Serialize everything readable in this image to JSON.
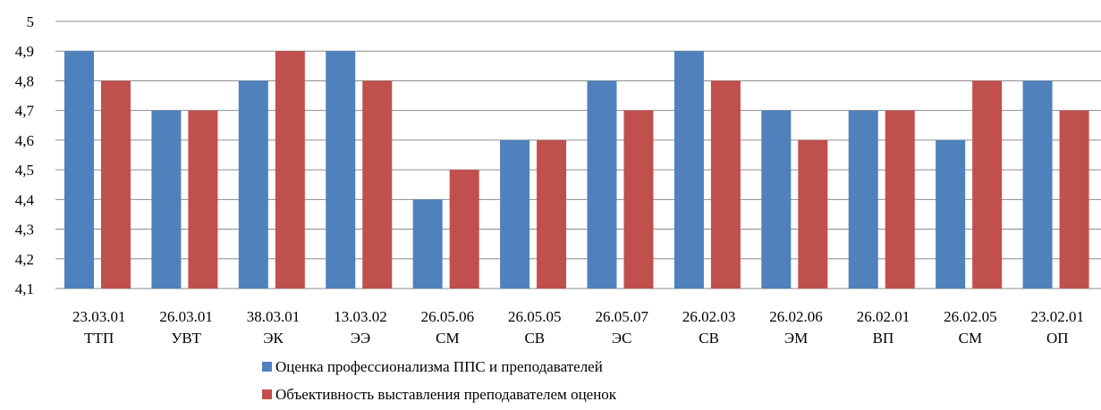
{
  "chart_data": {
    "type": "bar",
    "title": "",
    "xlabel": "",
    "ylabel": "",
    "ylim": [
      4.1,
      5.0
    ],
    "y_ticks": [
      "4,1",
      "4,2",
      "4,3",
      "4,4",
      "4,5",
      "4,6",
      "4,7",
      "4,8",
      "4,9",
      "5"
    ],
    "grid": true,
    "legend_position": "bottom",
    "categories": [
      [
        "23.03.01",
        "ТТП"
      ],
      [
        "26.03.01",
        "УВТ"
      ],
      [
        "38.03.01",
        "ЭК"
      ],
      [
        "13.03.02",
        "ЭЭ"
      ],
      [
        "26.05.06",
        "СМ"
      ],
      [
        "26.05.05",
        "СВ"
      ],
      [
        "26.05.07",
        "ЭС"
      ],
      [
        "26.02.03",
        "СВ"
      ],
      [
        "26.02.06",
        "ЭМ"
      ],
      [
        "26.02.01",
        "ВП"
      ],
      [
        "26.02.05",
        "СМ"
      ],
      [
        "23.02.01",
        "ОП"
      ]
    ],
    "series": [
      {
        "name": "Оценка профессионализма ППС и преподавателей",
        "color": "#4f81bd",
        "values": [
          4.9,
          4.7,
          4.8,
          4.9,
          4.4,
          4.6,
          4.8,
          4.9,
          4.7,
          4.7,
          4.6,
          4.8
        ]
      },
      {
        "name": "Объективность выставления преподавателем оценок",
        "color": "#c0504d",
        "values": [
          4.8,
          4.7,
          4.9,
          4.8,
          4.5,
          4.6,
          4.7,
          4.8,
          4.6,
          4.7,
          4.8,
          4.7
        ]
      }
    ]
  }
}
